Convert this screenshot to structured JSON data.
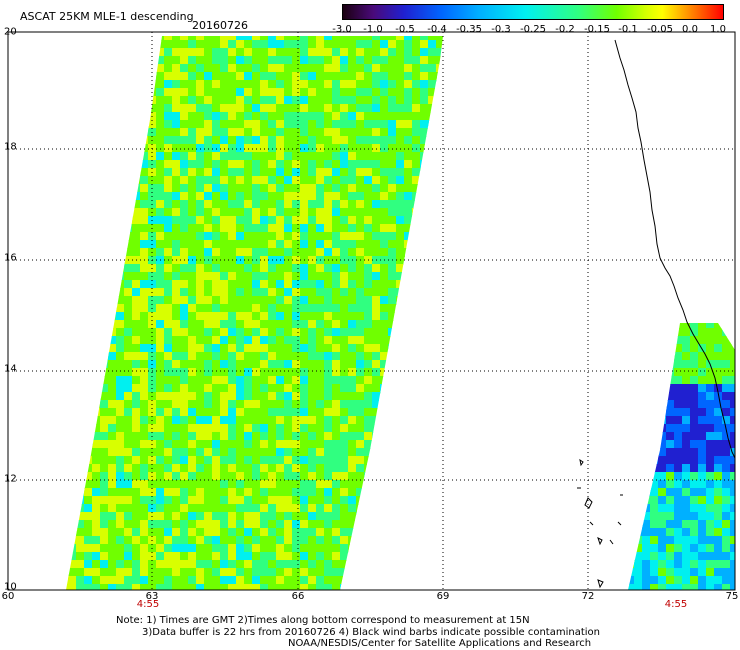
{
  "header": {
    "title": "ASCAT 25KM MLE-1 descending",
    "date": "20160726"
  },
  "colorbar": {
    "ticks": [
      "-3.0",
      "-1.0",
      "-0.5",
      "-0.4",
      "-0.35",
      "-0.3",
      "-0.25",
      "-0.2",
      "-0.15",
      "-0.1",
      "-0.05",
      "0.0",
      "1.0"
    ],
    "colors": [
      "#1a0010",
      "#4a0a7a",
      "#2020d0",
      "#0066ff",
      "#00b0ff",
      "#00f0f0",
      "#30ff80",
      "#70ff00",
      "#d8ff00",
      "#ffff00",
      "#ffa000",
      "#ff4000",
      "#ff0000"
    ]
  },
  "axes": {
    "x_labels": [
      "60",
      "63",
      "66",
      "69",
      "72",
      "75"
    ],
    "y_labels": [
      "20",
      "18",
      "16",
      "14",
      "12",
      "10"
    ],
    "times": [
      "4:55",
      "4:55"
    ]
  },
  "notes": {
    "line1": "Note: 1) Times are GMT 2)Times along bottom correspond to measurement at 15N",
    "line2": "3)Data buffer is 22 hrs from 20160726 4) Black wind barbs indicate possible contamination",
    "line3": "NOAA/NESDIS/Center for Satellite Applications and Research"
  }
}
